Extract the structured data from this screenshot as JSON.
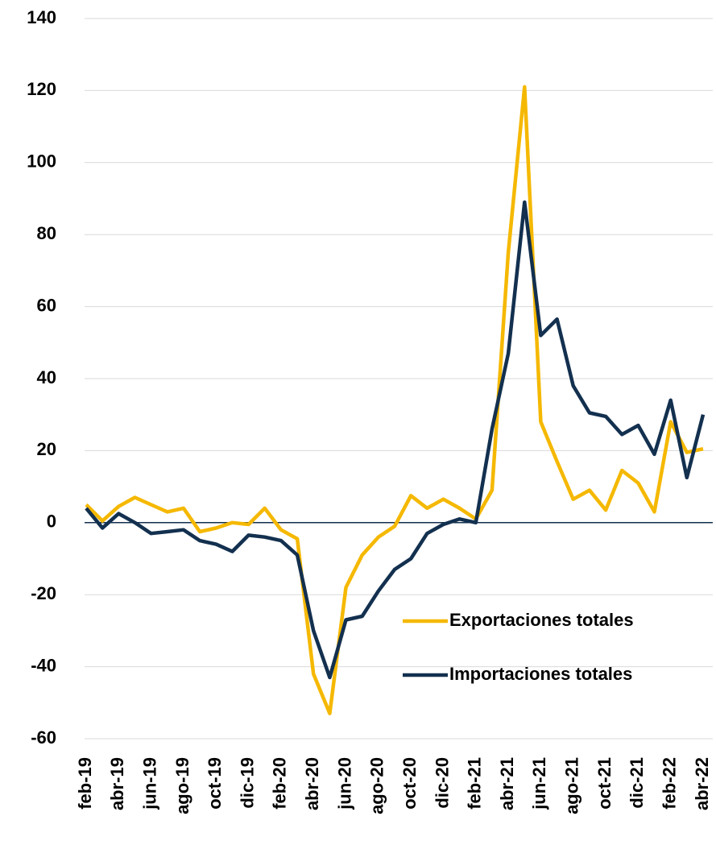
{
  "chart_data": {
    "type": "line",
    "categories": [
      "feb-19",
      null,
      "abr-19",
      null,
      "jun-19",
      null,
      "ago-19",
      null,
      "oct-19",
      null,
      "dic-19",
      null,
      "feb-20",
      null,
      "abr-20",
      null,
      "jun-20",
      null,
      "ago-20",
      null,
      "oct-20",
      null,
      "dic-20",
      null,
      "feb-21",
      null,
      "abr-21",
      null,
      "jun-21",
      null,
      "ago-21",
      null,
      "oct-21",
      null,
      "dic-21",
      null,
      "feb-22",
      null,
      "abr-22"
    ],
    "series": [
      {
        "name": "Exportaciones totales",
        "color": "#f5b800",
        "values": [
          5,
          0.5,
          4.5,
          7,
          5,
          3,
          4,
          -2.5,
          -1.5,
          0,
          -0.5,
          4,
          -2,
          -4.5,
          -42,
          -53,
          -18,
          -9,
          -4,
          -1,
          7.5,
          4,
          6.5,
          4,
          1,
          9,
          75,
          121,
          28,
          17,
          6.5,
          9,
          3.5,
          14.5,
          11,
          3,
          28,
          19.5,
          20.5
        ]
      },
      {
        "name": "Importaciones totales",
        "color": "#13304f",
        "values": [
          4,
          -1.5,
          2.5,
          0,
          -3,
          -2.5,
          -2,
          -5,
          -6,
          -8,
          -3.5,
          -4,
          -5,
          -9,
          -30,
          -43,
          -27,
          -26,
          -19,
          -13,
          -10,
          -3,
          -0.5,
          1,
          0,
          26,
          47,
          89,
          52,
          56.5,
          38,
          30.5,
          29.5,
          24.5,
          27,
          19,
          34,
          12.5,
          30
        ]
      }
    ],
    "ylim": [
      -60,
      140
    ],
    "yticks": [
      -60,
      -40,
      -20,
      0,
      20,
      40,
      60,
      80,
      100,
      120,
      140
    ],
    "grid": true,
    "legend": "lower right"
  }
}
